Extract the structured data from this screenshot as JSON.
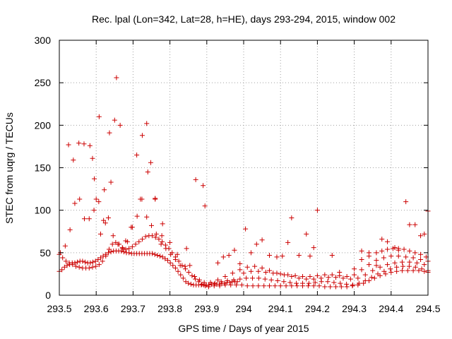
{
  "chart_data": {
    "type": "scatter",
    "title": "Rec. lpal (Lon=342, Lat=28, h=HE), days 293-294, 2015, window 002",
    "xlabel": "GPS time / Days of year 2015",
    "ylabel": "STEC from uqrg / TECUs",
    "xlim": [
      293.5,
      294.5
    ],
    "ylim": [
      0,
      300
    ],
    "xticks": [
      293.5,
      293.6,
      293.7,
      293.8,
      293.9,
      294.0,
      294.1,
      294.2,
      294.3,
      294.4,
      294.5
    ],
    "xtick_labels": [
      "293.5",
      "293.6",
      "293.7",
      "293.8",
      "293.9",
      "294",
      "294.1",
      "294.2",
      "294.3",
      "294.4",
      "294.5"
    ],
    "yticks": [
      0,
      50,
      100,
      150,
      200,
      250,
      300
    ],
    "ytick_labels": [
      "0",
      "50",
      "100",
      "150",
      "200",
      "250",
      "300"
    ],
    "grid": true,
    "marker": "+",
    "marker_color": "#cc0000",
    "series": [
      {
        "x": [
          293.5,
          293.507,
          293.514,
          293.521,
          293.528,
          293.535,
          293.542,
          293.549,
          293.556,
          293.563,
          293.57,
          293.577,
          293.584,
          293.591,
          293.598,
          293.605,
          293.612,
          293.619,
          293.626,
          293.633,
          293.64,
          293.647,
          293.654,
          293.661,
          293.668,
          293.675,
          293.682,
          293.689,
          293.696,
          293.703,
          293.71,
          293.717,
          293.724,
          293.731,
          293.738,
          293.745,
          293.752,
          293.759,
          293.766,
          293.773,
          293.78,
          293.787,
          293.794,
          293.801,
          293.808,
          293.815,
          293.822,
          293.829,
          293.836,
          293.843,
          293.85,
          293.857,
          293.864,
          293.871,
          293.878,
          293.885,
          293.892,
          293.899,
          293.906,
          293.913,
          293.92,
          293.927,
          293.934,
          293.941,
          293.948,
          293.955,
          293.962,
          293.969,
          293.976,
          293.983
        ],
        "y": [
          28,
          30,
          33,
          35,
          36,
          38,
          38,
          39,
          40,
          40,
          39,
          38,
          38,
          39,
          40,
          42,
          44,
          46,
          48,
          50,
          51,
          52,
          52,
          52,
          52,
          51,
          50,
          50,
          49,
          49,
          49,
          49,
          49,
          49,
          49,
          49,
          49,
          48,
          47,
          46,
          45,
          43,
          41,
          38,
          35,
          32,
          28,
          24,
          20,
          16,
          14,
          13,
          12,
          12,
          12,
          12,
          12,
          12,
          12,
          13,
          13,
          13,
          13,
          14,
          14,
          15,
          15,
          16,
          16,
          16
        ]
      },
      {
        "x": [
          293.5,
          293.509,
          293.518,
          293.527,
          293.536,
          293.545,
          293.554,
          293.563,
          293.572,
          293.581,
          293.59,
          293.599,
          293.608,
          293.617,
          293.626,
          293.635,
          293.644,
          293.653,
          293.662,
          293.671,
          293.68,
          293.689,
          293.698,
          293.707,
          293.716,
          293.725,
          293.734,
          293.743,
          293.752,
          293.761,
          293.77,
          293.779,
          293.788,
          293.797,
          293.806,
          293.815,
          293.824,
          293.833,
          293.842,
          293.851,
          293.86,
          293.869,
          293.878,
          293.887,
          293.896,
          293.905
        ],
        "y": [
          48,
          44,
          40,
          38,
          36,
          34,
          33,
          32,
          32,
          32,
          33,
          34,
          36,
          40,
          46,
          54,
          60,
          62,
          60,
          56,
          54,
          55,
          57,
          60,
          63,
          66,
          69,
          70,
          70,
          68,
          66,
          63,
          59,
          55,
          50,
          45,
          40,
          35,
          31,
          27,
          23,
          19,
          16,
          13,
          11,
          10
        ]
      },
      {
        "x": [
          293.503,
          293.516,
          293.529,
          293.542,
          293.555,
          293.568,
          293.581,
          293.594,
          293.607,
          293.62,
          293.633,
          293.646,
          293.659,
          293.672,
          293.685,
          293.698,
          293.711,
          293.724,
          293.737,
          293.75,
          293.763,
          293.776,
          293.789,
          293.802,
          293.815,
          293.828,
          293.841,
          293.854,
          293.867,
          293.88,
          293.893
        ],
        "y": [
          50,
          58,
          77,
          108,
          113,
          90,
          90,
          100,
          110,
          88,
          91,
          70,
          60,
          55,
          63,
          80,
          93,
          113,
          92,
          82,
          72,
          60,
          55,
          48,
          42,
          35,
          34,
          35,
          22,
          18,
          15
        ]
      },
      {
        "x": [
          293.525,
          293.538,
          293.553,
          293.567,
          293.583,
          293.595,
          293.608,
          293.622,
          293.636,
          293.65,
          293.665,
          293.68,
          293.695,
          293.71,
          293.725,
          293.74,
          293.76,
          293.78,
          293.8,
          293.82,
          293.845,
          293.87,
          293.89
        ],
        "y": [
          177,
          159,
          179,
          178,
          176,
          137,
          210,
          124,
          191,
          206,
          200,
          64,
          80,
          165,
          188,
          145,
          113,
          84,
          62,
          48,
          55,
          136,
          129
        ]
      },
      {
        "x": [
          293.59,
          293.6,
          293.612,
          293.625,
          293.64,
          293.655,
          293.72,
          293.737,
          293.748,
          293.76,
          293.778,
          293.895
        ],
        "y": [
          161,
          113,
          72,
          85,
          133,
          256,
          113,
          202,
          156,
          114,
          70,
          105
        ]
      },
      {
        "x": [
          293.905,
          293.92,
          293.935,
          293.95,
          293.965,
          293.98,
          293.995,
          294.01,
          294.025,
          294.04,
          294.055,
          294.07,
          294.085,
          294.1,
          294.115,
          294.13,
          294.145,
          294.16,
          294.175,
          294.19,
          294.205,
          294.22,
          294.235,
          294.25,
          294.265,
          294.28,
          294.295,
          294.31,
          294.325,
          294.34,
          294.355,
          294.37,
          294.385,
          294.4,
          294.415,
          294.43,
          294.445,
          294.46,
          294.475,
          294.49,
          294.5
        ],
        "y": [
          10,
          11,
          11,
          12,
          12,
          12,
          12,
          11,
          11,
          11,
          11,
          11,
          11,
          11,
          11,
          11,
          11,
          11,
          11,
          11,
          11,
          10,
          10,
          10,
          10,
          10,
          11,
          12,
          14,
          17,
          20,
          23,
          25,
          27,
          28,
          29,
          29,
          29,
          29,
          28,
          27
        ]
      },
      {
        "x": [
          293.905,
          293.922,
          293.939,
          293.956,
          293.973,
          293.99,
          294.007,
          294.024,
          294.041,
          294.058,
          294.075,
          294.092,
          294.109,
          294.126,
          294.143,
          294.16,
          294.177,
          294.194,
          294.211,
          294.228,
          294.245,
          294.262,
          294.279,
          294.296,
          294.313,
          294.33,
          294.347,
          294.364,
          294.381,
          294.398,
          294.415,
          294.432,
          294.449,
          294.466,
          294.483,
          294.5
        ],
        "y": [
          12,
          14,
          16,
          17,
          18,
          19,
          20,
          20,
          20,
          19,
          18,
          17,
          16,
          15,
          14,
          14,
          14,
          15,
          16,
          16,
          15,
          14,
          13,
          12,
          14,
          17,
          21,
          25,
          28,
          31,
          33,
          34,
          34,
          33,
          31,
          29
        ]
      },
      {
        "x": [
          293.91,
          293.93,
          293.95,
          293.97,
          293.99,
          294.01,
          294.03,
          294.05,
          294.07,
          294.09,
          294.11,
          294.13,
          294.15,
          294.17,
          294.19,
          294.21,
          294.23,
          294.25,
          294.27,
          294.29,
          294.31,
          294.33,
          294.35,
          294.37,
          294.39,
          294.41,
          294.43,
          294.45,
          294.47,
          294.49
        ],
        "y": [
          15,
          18,
          22,
          26,
          30,
          33,
          34,
          32,
          29,
          26,
          24,
          22,
          20,
          19,
          19,
          20,
          21,
          21,
          20,
          19,
          20,
          24,
          29,
          33,
          36,
          38,
          39,
          39,
          38,
          36
        ]
      },
      {
        "x": [
          294.0,
          294.02,
          294.04,
          294.06,
          294.08,
          294.1,
          294.12,
          294.14,
          294.16,
          294.18,
          294.2,
          294.22,
          294.24,
          294.26,
          294.28,
          294.3,
          294.32,
          294.34,
          294.36,
          294.38,
          294.4,
          294.42,
          294.44,
          294.46,
          294.48,
          294.5
        ],
        "y": [
          26,
          28,
          28,
          27,
          26,
          25,
          24,
          23,
          22,
          22,
          23,
          24,
          24,
          23,
          22,
          24,
          30,
          36,
          41,
          44,
          46,
          46,
          45,
          44,
          42,
          40
        ]
      },
      {
        "x": [
          294.32,
          294.34,
          294.36,
          294.375,
          294.39,
          294.405,
          294.42,
          294.435,
          294.45,
          294.465,
          294.48,
          294.495
        ],
        "y": [
          42,
          46,
          50,
          52,
          54,
          55,
          55,
          54,
          52,
          50,
          48,
          45
        ]
      },
      {
        "x": [
          293.93,
          293.945,
          293.96,
          293.975,
          293.99,
          294.005,
          294.02,
          294.035,
          294.05,
          294.07,
          294.09,
          294.105,
          294.12,
          294.13,
          294.15,
          294.17,
          294.18,
          294.19,
          294.2,
          294.24,
          294.26,
          294.3,
          294.32,
          294.34,
          294.36,
          294.375,
          294.39,
          294.41,
          294.42,
          294.44,
          294.45,
          294.465,
          294.48,
          294.49,
          294.5
        ],
        "y": [
          38,
          45,
          47,
          53,
          37,
          78,
          50,
          60,
          65,
          47,
          45,
          46,
          62,
          91,
          47,
          72,
          46,
          56,
          100,
          47,
          27,
          31,
          52,
          50,
          35,
          66,
          63,
          56,
          53,
          110,
          83,
          83,
          70,
          72,
          99
        ]
      }
    ]
  }
}
